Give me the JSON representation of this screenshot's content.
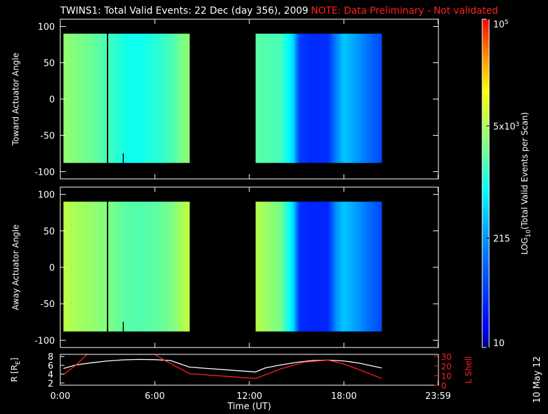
{
  "header": {
    "title": "TWINS1: Total Valid Events: 22 Dec (day 356), 2009",
    "note": "NOTE: Data Preliminary - Not validated"
  },
  "stamp": "10 May 12",
  "colors": {
    "background": "#000000",
    "note_red": "#ff2020",
    "trace_white": "#ffffff",
    "trace_red": "#ff2020"
  },
  "chart_data": [
    {
      "type": "heatmap",
      "title": "",
      "ylabel": "Toward Actuator Angle",
      "ylim": [
        -110,
        110
      ],
      "yticks": [
        100,
        50,
        0,
        -50,
        -100
      ],
      "xlim": [
        0,
        24
      ],
      "angle_range": [
        -88,
        90
      ],
      "data_intervals_hours": [
        [
          0.2,
          8.2
        ],
        [
          12.4,
          20.4
        ]
      ],
      "gap_marker_hour": 3.0,
      "short_marker_hour": 4.0,
      "log10_intensity_by_hour": [
        [
          0.2,
          3.55
        ],
        [
          1.0,
          3.45
        ],
        [
          2.0,
          3.35
        ],
        [
          3.0,
          3.2
        ],
        [
          4.0,
          3.0
        ],
        [
          5.0,
          2.95
        ],
        [
          6.0,
          3.05
        ],
        [
          7.0,
          3.2
        ],
        [
          8.0,
          3.5
        ],
        [
          12.4,
          3.3
        ],
        [
          13.0,
          3.25
        ],
        [
          14.0,
          3.2
        ],
        [
          14.8,
          2.7
        ],
        [
          15.2,
          1.7
        ],
        [
          16.0,
          1.55
        ],
        [
          17.0,
          1.6
        ],
        [
          17.5,
          2.2
        ],
        [
          18.0,
          2.6
        ],
        [
          19.0,
          2.3
        ],
        [
          20.0,
          1.9
        ],
        [
          20.4,
          1.8
        ]
      ]
    },
    {
      "type": "heatmap",
      "title": "",
      "ylabel": "Away Actuator Angle",
      "ylim": [
        -110,
        110
      ],
      "yticks": [
        100,
        50,
        0,
        -50,
        -100
      ],
      "xlim": [
        0,
        24
      ],
      "angle_range": [
        -88,
        90
      ],
      "data_intervals_hours": [
        [
          0.2,
          8.2
        ],
        [
          12.4,
          20.4
        ]
      ],
      "gap_marker_hour": 3.0,
      "short_marker_hour": 4.0,
      "log10_intensity_by_hour": [
        [
          0.2,
          3.75
        ],
        [
          1.0,
          3.65
        ],
        [
          2.0,
          3.55
        ],
        [
          3.0,
          3.45
        ],
        [
          4.0,
          3.3
        ],
        [
          5.0,
          3.25
        ],
        [
          6.0,
          3.3
        ],
        [
          7.0,
          3.4
        ],
        [
          8.0,
          3.75
        ],
        [
          12.4,
          3.75
        ],
        [
          13.0,
          3.6
        ],
        [
          14.0,
          3.4
        ],
        [
          14.8,
          2.7
        ],
        [
          15.2,
          1.6
        ],
        [
          16.0,
          1.5
        ],
        [
          17.0,
          1.55
        ],
        [
          17.5,
          2.3
        ],
        [
          18.0,
          2.6
        ],
        [
          19.0,
          2.3
        ],
        [
          20.0,
          1.9
        ],
        [
          20.4,
          1.8
        ]
      ]
    },
    {
      "type": "line",
      "title": "",
      "xlabel": "Time (UT)",
      "xlim": [
        0,
        24
      ],
      "xtick_labels": [
        "0:00",
        "6:00",
        "12:00",
        "18:00",
        "23:59"
      ],
      "xticks": [
        0,
        6,
        12,
        18,
        23.98
      ],
      "ylabel": "R [R",
      "ylabel_sub": "E",
      "ylabel_close": "]",
      "ylim": [
        1.5,
        8.5
      ],
      "yticks": [
        2,
        4,
        6,
        8
      ],
      "y2label": "L Shell",
      "y2lim": [
        0,
        32
      ],
      "y2ticks": [
        0,
        10,
        20,
        30
      ],
      "series": [
        {
          "color": "#ffffff",
          "axis": "left",
          "x": [
            0.2,
            1.0,
            2.0,
            3.0,
            4.0,
            5.0,
            6.0,
            7.0,
            8.2,
            12.4,
            13.0,
            14.0,
            15.0,
            16.0,
            17.0,
            18.0,
            19.0,
            20.4
          ],
          "y": [
            5.3,
            6.1,
            6.6,
            7.0,
            7.25,
            7.35,
            7.3,
            7.1,
            5.6,
            4.5,
            5.4,
            6.1,
            6.7,
            7.1,
            7.2,
            7.0,
            6.5,
            5.4
          ]
        },
        {
          "color": "#ff2020",
          "axis": "right",
          "x": [
            0.2,
            1.0,
            1.7,
            6.0,
            6.6,
            8.2,
            12.4,
            14.0,
            15.5,
            17.0,
            18.0,
            19.0,
            20.4
          ],
          "y": [
            11,
            21,
            32,
            32,
            26,
            12,
            7,
            17,
            24,
            26,
            22,
            16,
            7
          ]
        }
      ]
    }
  ],
  "colorbar": {
    "type": "colorbar",
    "scale": "log",
    "range": [
      10,
      100000
    ],
    "labels": [
      {
        "value": 100000,
        "text": "10",
        "sup": "5"
      },
      {
        "value": 5000,
        "text": "5x10",
        "sup": "3"
      },
      {
        "value": 215,
        "text": "215",
        "sup": ""
      },
      {
        "value": 10,
        "text": "10",
        "sup": ""
      }
    ],
    "label_pre": "LOG",
    "label_sub": "10",
    "label_post": "(Total Valid Events per Scan)"
  }
}
